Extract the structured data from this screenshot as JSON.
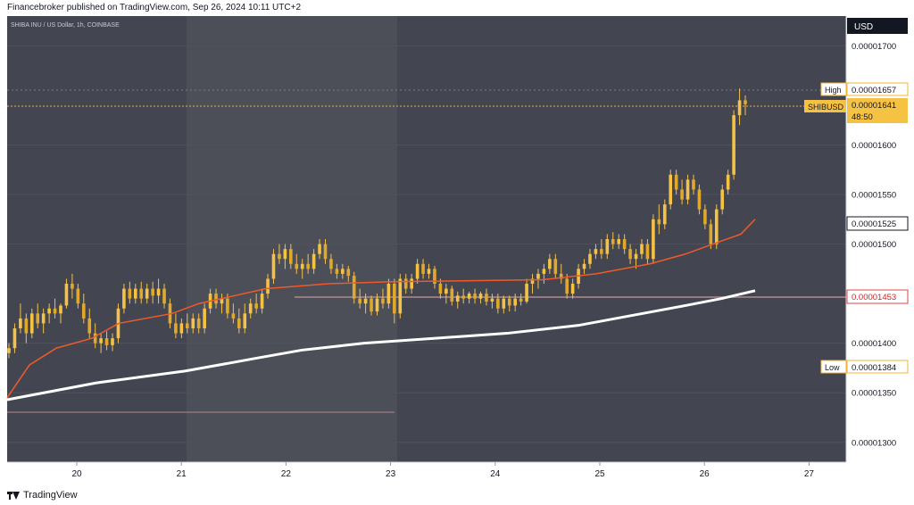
{
  "header": {
    "publish_line": "Financebroker published on TradingView.com, Sep 26, 2024 10:11 UTC+2"
  },
  "chart_data": {
    "type": "candlestick",
    "symbol_line": "SHIBA INU / US Dollar, 1h, COINBASE",
    "currency": "USD",
    "ylim": [
      1.28e-05,
      1.73e-05
    ],
    "y_ticks": [
      "0.00001700",
      "0.00001600",
      "0.00001550",
      "0.00001500",
      "0.00001400",
      "0.00001350",
      "0.00001300"
    ],
    "x_ticks": [
      "20",
      "21",
      "22",
      "23",
      "24",
      "25",
      "26",
      "27"
    ],
    "labels": {
      "high": {
        "name": "High",
        "value": "0.00001657"
      },
      "current": {
        "name": "SHIBUSD",
        "value": "0.00001641",
        "countdown": "48:50"
      },
      "ma_fast": {
        "value": "0.00001525"
      },
      "ma_slow": {
        "value": "0.00001453"
      },
      "low": {
        "name": "Low",
        "value": "0.00001384"
      }
    },
    "candles": [
      [
        1.39e-05,
        1.4e-05,
        1.385e-05,
        1.395e-05
      ],
      [
        1.395e-05,
        1.42e-05,
        1.39e-05,
        1.415e-05
      ],
      [
        1.415e-05,
        1.44e-05,
        1.41e-05,
        1.425e-05
      ],
      [
        1.425e-05,
        1.43e-05,
        1.4e-05,
        1.41e-05
      ],
      [
        1.41e-05,
        1.435e-05,
        1.405e-05,
        1.43e-05
      ],
      [
        1.43e-05,
        1.44e-05,
        1.415e-05,
        1.42e-05
      ],
      [
        1.42e-05,
        1.435e-05,
        1.41e-05,
        1.43e-05
      ],
      [
        1.43e-05,
        1.44e-05,
        1.42e-05,
        1.435e-05
      ],
      [
        1.435e-05,
        1.445e-05,
        1.425e-05,
        1.43e-05
      ],
      [
        1.43e-05,
        1.44e-05,
        1.42e-05,
        1.438e-05
      ],
      [
        1.438e-05,
        1.465e-05,
        1.435e-05,
        1.46e-05
      ],
      [
        1.46e-05,
        1.47e-05,
        1.445e-05,
        1.455e-05
      ],
      [
        1.455e-05,
        1.46e-05,
        1.435e-05,
        1.44e-05
      ],
      [
        1.44e-05,
        1.45e-05,
        1.42e-05,
        1.425e-05
      ],
      [
        1.425e-05,
        1.435e-05,
        1.405e-05,
        1.41e-05
      ],
      [
        1.41e-05,
        1.42e-05,
        1.395e-05,
        1.4e-05
      ],
      [
        1.4e-05,
        1.41e-05,
        1.39e-05,
        1.405e-05
      ],
      [
        1.405e-05,
        1.412e-05,
        1.393e-05,
        1.398e-05
      ],
      [
        1.398e-05,
        1.41e-05,
        1.392e-05,
        1.405e-05
      ],
      [
        1.405e-05,
        1.44e-05,
        1.4e-05,
        1.435e-05
      ],
      [
        1.435e-05,
        1.46e-05,
        1.43e-05,
        1.455e-05
      ],
      [
        1.455e-05,
        1.462e-05,
        1.44e-05,
        1.445e-05
      ],
      [
        1.445e-05,
        1.46e-05,
        1.44e-05,
        1.455e-05
      ],
      [
        1.455e-05,
        1.462e-05,
        1.44e-05,
        1.445e-05
      ],
      [
        1.445e-05,
        1.46e-05,
        1.44e-05,
        1.455e-05
      ],
      [
        1.455e-05,
        1.462e-05,
        1.44e-05,
        1.448e-05
      ],
      [
        1.448e-05,
        1.465e-05,
        1.44e-05,
        1.455e-05
      ],
      [
        1.455e-05,
        1.46e-05,
        1.435e-05,
        1.44e-05
      ],
      [
        1.44e-05,
        1.445e-05,
        1.415e-05,
        1.42e-05
      ],
      [
        1.42e-05,
        1.43e-05,
        1.405e-05,
        1.41e-05
      ],
      [
        1.41e-05,
        1.425e-05,
        1.405e-05,
        1.42e-05
      ],
      [
        1.42e-05,
        1.43e-05,
        1.41e-05,
        1.415e-05
      ],
      [
        1.415e-05,
        1.43e-05,
        1.41e-05,
        1.425e-05
      ],
      [
        1.425e-05,
        1.43e-05,
        1.41e-05,
        1.415e-05
      ],
      [
        1.415e-05,
        1.44e-05,
        1.41e-05,
        1.435e-05
      ],
      [
        1.435e-05,
        1.455e-05,
        1.43e-05,
        1.45e-05
      ],
      [
        1.45e-05,
        1.455e-05,
        1.435e-05,
        1.44e-05
      ],
      [
        1.44e-05,
        1.45e-05,
        1.43e-05,
        1.445e-05
      ],
      [
        1.445e-05,
        1.45e-05,
        1.425e-05,
        1.43e-05
      ],
      [
        1.43e-05,
        1.44e-05,
        1.42e-05,
        1.425e-05
      ],
      [
        1.425e-05,
        1.435e-05,
        1.41e-05,
        1.415e-05
      ],
      [
        1.415e-05,
        1.44e-05,
        1.41e-05,
        1.43e-05
      ],
      [
        1.43e-05,
        1.445e-05,
        1.425e-05,
        1.44e-05
      ],
      [
        1.44e-05,
        1.45e-05,
        1.43e-05,
        1.435e-05
      ],
      [
        1.435e-05,
        1.455e-05,
        1.43e-05,
        1.45e-05
      ],
      [
        1.45e-05,
        1.47e-05,
        1.445e-05,
        1.465e-05
      ],
      [
        1.465e-05,
        1.495e-05,
        1.46e-05,
        1.49e-05
      ],
      [
        1.49e-05,
        1.5e-05,
        1.48e-05,
        1.485e-05
      ],
      [
        1.485e-05,
        1.5e-05,
        1.475e-05,
        1.495e-05
      ],
      [
        1.495e-05,
        1.5e-05,
        1.475e-05,
        1.48e-05
      ],
      [
        1.48e-05,
        1.49e-05,
        1.47e-05,
        1.475e-05
      ],
      [
        1.475e-05,
        1.485e-05,
        1.465e-05,
        1.48e-05
      ],
      [
        1.48e-05,
        1.49e-05,
        1.47e-05,
        1.475e-05
      ],
      [
        1.475e-05,
        1.495e-05,
        1.47e-05,
        1.49e-05
      ],
      [
        1.49e-05,
        1.505e-05,
        1.485e-05,
        1.5e-05
      ],
      [
        1.5e-05,
        1.505e-05,
        1.48e-05,
        1.485e-05
      ],
      [
        1.485e-05,
        1.49e-05,
        1.47e-05,
        1.475e-05
      ],
      [
        1.475e-05,
        1.48e-05,
        1.465e-05,
        1.47e-05
      ],
      [
        1.47e-05,
        1.48e-05,
        1.465e-05,
        1.475e-05
      ],
      [
        1.475e-05,
        1.478e-05,
        1.462e-05,
        1.468e-05
      ],
      [
        1.468e-05,
        1.472e-05,
        1.44e-05,
        1.445e-05
      ],
      [
        1.445e-05,
        1.455e-05,
        1.435e-05,
        1.44e-05
      ],
      [
        1.44e-05,
        1.45e-05,
        1.43e-05,
        1.445e-05
      ],
      [
        1.445e-05,
        1.448e-05,
        1.428e-05,
        1.432e-05
      ],
      [
        1.432e-05,
        1.45e-05,
        1.428e-05,
        1.445e-05
      ],
      [
        1.445e-05,
        1.455e-05,
        1.435e-05,
        1.44e-05
      ],
      [
        1.44e-05,
        1.465e-05,
        1.435e-05,
        1.46e-05
      ],
      [
        1.46e-05,
        1.465e-05,
        1.42e-05,
        1.43e-05
      ],
      [
        1.43e-05,
        1.47e-05,
        1.425e-05,
        1.465e-05
      ],
      [
        1.465e-05,
        1.47e-05,
        1.45e-05,
        1.455e-05
      ],
      [
        1.455e-05,
        1.47e-05,
        1.45e-05,
        1.465e-05
      ],
      [
        1.465e-05,
        1.485e-05,
        1.46e-05,
        1.48e-05
      ],
      [
        1.48e-05,
        1.485e-05,
        1.465e-05,
        1.47e-05
      ],
      [
        1.47e-05,
        1.48e-05,
        1.465e-05,
        1.475e-05
      ],
      [
        1.475e-05,
        1.478e-05,
        1.455e-05,
        1.46e-05
      ],
      [
        1.46e-05,
        1.465e-05,
        1.445e-05,
        1.45e-05
      ],
      [
        1.45e-05,
        1.46e-05,
        1.44e-05,
        1.455e-05
      ],
      [
        1.455e-05,
        1.458e-05,
        1.438e-05,
        1.442e-05
      ],
      [
        1.442e-05,
        1.452e-05,
        1.435e-05,
        1.448e-05
      ],
      [
        1.448e-05,
        1.455e-05,
        1.44e-05,
        1.445e-05
      ],
      [
        1.445e-05,
        1.452e-05,
        1.44e-05,
        1.45e-05
      ],
      [
        1.45e-05,
        1.455e-05,
        1.44e-05,
        1.445e-05
      ],
      [
        1.445e-05,
        1.452e-05,
        1.44e-05,
        1.45e-05
      ],
      [
        1.45e-05,
        1.455e-05,
        1.438e-05,
        1.442e-05
      ],
      [
        1.442e-05,
        1.45e-05,
        1.435e-05,
        1.445e-05
      ],
      [
        1.445e-05,
        1.45e-05,
        1.43e-05,
        1.435e-05
      ],
      [
        1.435e-05,
        1.448e-05,
        1.43e-05,
        1.445e-05
      ],
      [
        1.445e-05,
        1.448e-05,
        1.432e-05,
        1.438e-05
      ],
      [
        1.438e-05,
        1.45e-05,
        1.432e-05,
        1.445e-05
      ],
      [
        1.445e-05,
        1.45e-05,
        1.438e-05,
        1.442e-05
      ],
      [
        1.442e-05,
        1.465e-05,
        1.44e-05,
        1.46e-05
      ],
      [
        1.46e-05,
        1.47e-05,
        1.45e-05,
        1.465e-05
      ],
      [
        1.465e-05,
        1.475e-05,
        1.455e-05,
        1.47e-05
      ],
      [
        1.47e-05,
        1.48e-05,
        1.46e-05,
        1.475e-05
      ],
      [
        1.475e-05,
        1.49e-05,
        1.47e-05,
        1.485e-05
      ],
      [
        1.485e-05,
        1.49e-05,
        1.465e-05,
        1.47e-05
      ],
      [
        1.47e-05,
        1.48e-05,
        1.46e-05,
        1.465e-05
      ],
      [
        1.465e-05,
        1.47e-05,
        1.445e-05,
        1.45e-05
      ],
      [
        1.45e-05,
        1.465e-05,
        1.445e-05,
        1.46e-05
      ],
      [
        1.46e-05,
        1.48e-05,
        1.455e-05,
        1.475e-05
      ],
      [
        1.475e-05,
        1.485e-05,
        1.47e-05,
        1.48e-05
      ],
      [
        1.48e-05,
        1.495e-05,
        1.475e-05,
        1.49e-05
      ],
      [
        1.49e-05,
        1.5e-05,
        1.485e-05,
        1.495e-05
      ],
      [
        1.495e-05,
        1.505e-05,
        1.485e-05,
        1.49e-05
      ],
      [
        1.49e-05,
        1.51e-05,
        1.485e-05,
        1.505e-05
      ],
      [
        1.505e-05,
        1.512e-05,
        1.495e-05,
        1.5e-05
      ],
      [
        1.5e-05,
        1.51e-05,
        1.495e-05,
        1.505e-05
      ],
      [
        1.505e-05,
        1.51e-05,
        1.49e-05,
        1.495e-05
      ],
      [
        1.495e-05,
        1.5e-05,
        1.48e-05,
        1.485e-05
      ],
      [
        1.485e-05,
        1.495e-05,
        1.475e-05,
        1.49e-05
      ],
      [
        1.49e-05,
        1.505e-05,
        1.485e-05,
        1.5e-05
      ],
      [
        1.5e-05,
        1.505e-05,
        1.48e-05,
        1.485e-05
      ],
      [
        1.485e-05,
        1.53e-05,
        1.48e-05,
        1.525e-05
      ],
      [
        1.525e-05,
        1.54e-05,
        1.51e-05,
        1.52e-05
      ],
      [
        1.52e-05,
        1.545e-05,
        1.515e-05,
        1.54e-05
      ],
      [
        1.54e-05,
        1.575e-05,
        1.535e-05,
        1.57e-05
      ],
      [
        1.57e-05,
        1.575e-05,
        1.55e-05,
        1.555e-05
      ],
      [
        1.555e-05,
        1.565e-05,
        1.54e-05,
        1.545e-05
      ],
      [
        1.545e-05,
        1.57e-05,
        1.54e-05,
        1.565e-05
      ],
      [
        1.565e-05,
        1.57e-05,
        1.55e-05,
        1.555e-05
      ],
      [
        1.555e-05,
        1.56e-05,
        1.53e-05,
        1.535e-05
      ],
      [
        1.535e-05,
        1.54e-05,
        1.515e-05,
        1.52e-05
      ],
      [
        1.52e-05,
        1.525e-05,
        1.495e-05,
        1.5e-05
      ],
      [
        1.5e-05,
        1.54e-05,
        1.495e-05,
        1.535e-05
      ],
      [
        1.535e-05,
        1.56e-05,
        1.53e-05,
        1.555e-05
      ],
      [
        1.555e-05,
        1.575e-05,
        1.55e-05,
        1.57e-05
      ],
      [
        1.57e-05,
        1.635e-05,
        1.565e-05,
        1.63e-05
      ],
      [
        1.63e-05,
        1.657e-05,
        1.62e-05,
        1.645e-05
      ],
      [
        1.645e-05,
        1.65e-05,
        1.63e-05,
        1.641e-05
      ]
    ],
    "ma_fast": [
      [
        0,
        1.345e-05
      ],
      [
        25,
        1.378e-05
      ],
      [
        55,
        1.395e-05
      ],
      [
        95,
        1.405e-05
      ],
      [
        125,
        1.42e-05
      ],
      [
        185,
        1.43e-05
      ],
      [
        215,
        1.44e-05
      ],
      [
        290,
        1.455e-05
      ],
      [
        360,
        1.46e-05
      ],
      [
        430,
        1.462e-05
      ],
      [
        520,
        1.463e-05
      ],
      [
        600,
        1.464e-05
      ],
      [
        660,
        1.47e-05
      ],
      [
        720,
        1.48e-05
      ],
      [
        760,
        1.49e-05
      ],
      [
        800,
        1.503e-05
      ],
      [
        822,
        1.51e-05
      ],
      [
        838,
        1.525e-05
      ]
    ],
    "ma_slow": [
      [
        0,
        1.343e-05
      ],
      [
        100,
        1.36e-05
      ],
      [
        200,
        1.372e-05
      ],
      [
        280,
        1.385e-05
      ],
      [
        330,
        1.393e-05
      ],
      [
        400,
        1.4e-05
      ],
      [
        480,
        1.405e-05
      ],
      [
        560,
        1.41e-05
      ],
      [
        640,
        1.418e-05
      ],
      [
        700,
        1.428e-05
      ],
      [
        760,
        1.438e-05
      ],
      [
        800,
        1.445e-05
      ],
      [
        838,
        1.453e-05
      ]
    ]
  }
}
